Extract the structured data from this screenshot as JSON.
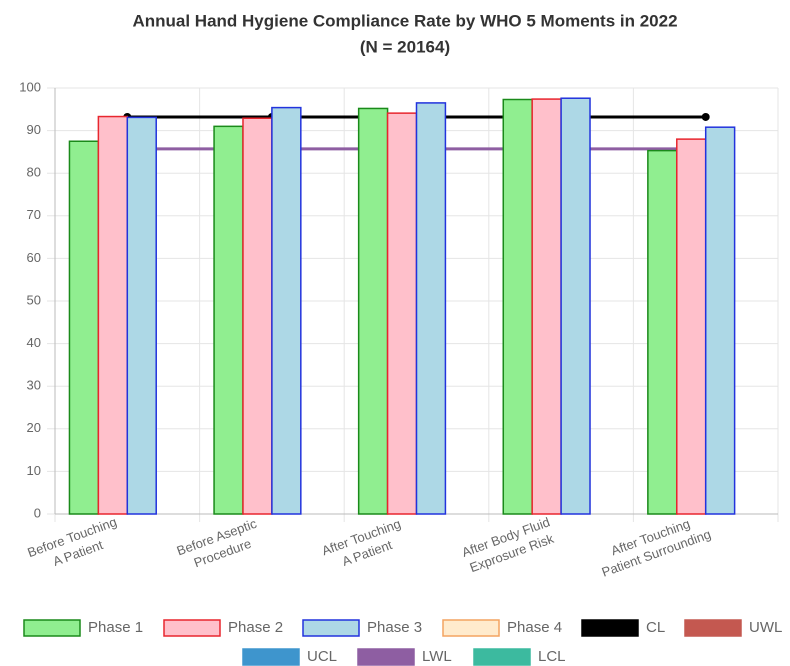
{
  "chart_data": {
    "type": "bar",
    "title": "Annual Hand Hygiene Compliance Rate by WHO 5 Moments in 2022",
    "subtitle": "(N = 20164)",
    "categories": [
      [
        "Before Touching",
        "A Patient"
      ],
      [
        "Before Aseptic",
        "Procedure"
      ],
      [
        "After Touching",
        "A Patient"
      ],
      [
        "After Body Fluid",
        "Exprosure Risk"
      ],
      [
        "After Touching",
        "Patient Surrounding"
      ]
    ],
    "series": [
      {
        "name": "Phase 1",
        "type": "bar",
        "color": "#90ee90",
        "border_color": "#1a8a1a",
        "values": [
          87.5,
          91,
          95.2,
          97.3,
          85.3
        ]
      },
      {
        "name": "Phase 2",
        "type": "bar",
        "color": "#ffc0cb",
        "border_color": "#e8262e",
        "values": [
          93.3,
          92.9,
          94.1,
          97.4,
          88
        ]
      },
      {
        "name": "Phase 3",
        "type": "bar",
        "color": "#add8e6",
        "border_color": "#2233dd",
        "values": [
          93.1,
          95.4,
          96.5,
          97.6,
          90.8
        ]
      },
      {
        "name": "Phase 4",
        "type": "bar",
        "color": "#ffebcd",
        "border_color": "#f4a460",
        "values": [
          null,
          null,
          null,
          null,
          null
        ]
      },
      {
        "name": "CL",
        "type": "line",
        "color": "#000000",
        "values": [
          93.2,
          93.2,
          93.2,
          93.2,
          93.2
        ]
      },
      {
        "name": "UWL",
        "type": "line",
        "color": "#c45850",
        "values": [
          null,
          null,
          null,
          null,
          null
        ]
      },
      {
        "name": "UCL",
        "type": "line",
        "color": "#3e95cd",
        "values": [
          null,
          null,
          null,
          null,
          null
        ]
      },
      {
        "name": "LWL",
        "type": "line",
        "color": "#8e5ea2",
        "values": [
          85.7,
          85.7,
          85.7,
          85.7,
          85.7
        ]
      },
      {
        "name": "LCL",
        "type": "line",
        "color": "#3cba9f",
        "values": [
          null,
          null,
          null,
          null,
          null
        ]
      }
    ],
    "ylim": [
      0,
      100
    ],
    "yticks": [
      0,
      10,
      20,
      30,
      40,
      50,
      60,
      70,
      80,
      90,
      100
    ],
    "grid": true
  }
}
